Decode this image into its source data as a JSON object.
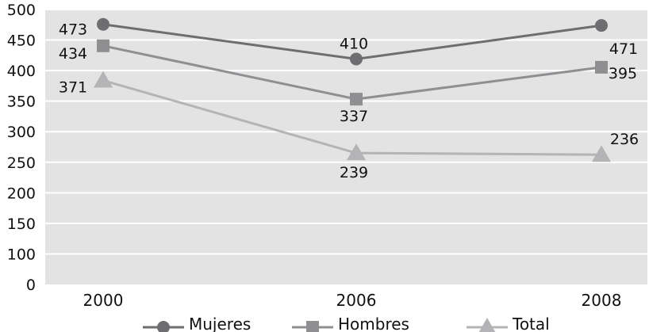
{
  "chart_data": {
    "type": "line",
    "categories": [
      "2000",
      "2006",
      "2008"
    ],
    "ylim": [
      0,
      500
    ],
    "yticks": [
      "0",
      "100",
      "150",
      "200",
      "250",
      "300",
      "350",
      "400",
      "450",
      "500"
    ],
    "grid": true,
    "legend_position": "bottom",
    "series": [
      {
        "name": "Mujeres",
        "values": [
          473,
          410,
          471
        ],
        "labels": [
          "473",
          "410",
          "471"
        ],
        "color": "#6e6e70",
        "marker": "circle"
      },
      {
        "name": "Hombres",
        "values": [
          434,
          337,
          395
        ],
        "labels": [
          "434",
          "337",
          "395"
        ],
        "color": "#8f8f92",
        "marker": "square"
      },
      {
        "name": "Total",
        "values": [
          371,
          239,
          236
        ],
        "labels": [
          "371",
          "239",
          "236"
        ],
        "color": "#b4b4b6",
        "marker": "triangle"
      }
    ],
    "plot_background": "#e3e3e4"
  }
}
